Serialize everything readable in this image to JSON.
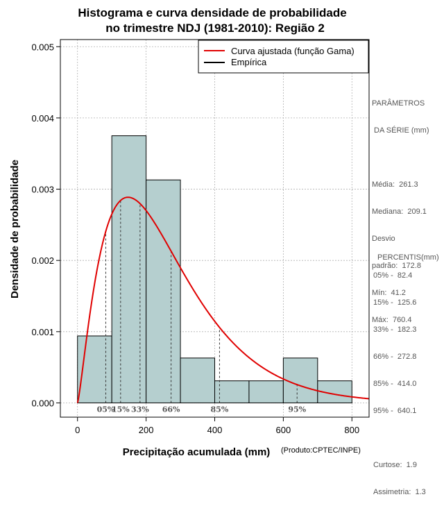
{
  "colors": {
    "bar_fill": "#b5cfcf",
    "bar_stroke": "#000000",
    "curve": "#e00000",
    "empirical": "#000000",
    "grid": "#b0b0b0",
    "side_text": "#555555"
  },
  "chart_data": {
    "type": "bar",
    "title_line1": "Histograma e curva densidade de probabilidade",
    "title_line2": "no trimestre NDJ (1981-2010): Região 2",
    "xlabel": "Precipitação acumulada (mm)",
    "ylabel": "Densidade de probabilidade",
    "credit": "(Produto:CPTEC/INPE)",
    "xlim": [
      -50,
      850
    ],
    "ylim": [
      -0.0002,
      0.0051
    ],
    "x_ticks": [
      0,
      200,
      400,
      600,
      800
    ],
    "x_tick_labels": [
      "0",
      "200",
      "400",
      "600",
      "800"
    ],
    "y_ticks": [
      0.0,
      0.001,
      0.002,
      0.003,
      0.004,
      0.005
    ],
    "y_tick_labels": [
      "0.000",
      "0.001",
      "0.002",
      "0.003",
      "0.004",
      "0.005"
    ],
    "grid": true,
    "histogram": {
      "bins": [
        [
          0,
          100
        ],
        [
          100,
          200
        ],
        [
          200,
          300
        ],
        [
          300,
          400
        ],
        [
          400,
          500
        ],
        [
          500,
          600
        ],
        [
          600,
          700
        ],
        [
          700,
          800
        ]
      ],
      "density": [
        0.00094,
        0.00375,
        0.00313,
        0.00063,
        0.00031,
        0.00031,
        0.00063,
        0.00031
      ]
    },
    "gamma_fit": {
      "shape": 2.29,
      "scale": 114.2
    },
    "legend": {
      "position": "top-right",
      "entries": [
        {
          "label": "Curva ajustada (função Gama)",
          "color": "#e00000"
        },
        {
          "label": "Empírica",
          "color": "#000000"
        }
      ]
    },
    "percentile_lines": [
      {
        "label": "05%",
        "value": 82.4
      },
      {
        "label": "15%",
        "value": 125.6
      },
      {
        "label": "33%",
        "value": 182.3
      },
      {
        "label": "66%",
        "value": 272.8
      },
      {
        "label": "85%",
        "value": 414.0
      },
      {
        "label": "95%",
        "value": 640.1
      }
    ]
  },
  "params_panel": {
    "heading_line1": "PARÂMETROS",
    "heading_line2": " DA SÉRIE (mm)",
    "media": "Média:  261.3",
    "mediana": "Mediana:  209.1",
    "desvio1": "Desvio",
    "desvio2": "padrão:  172.8",
    "min": "Mín:  41.2",
    "max": "Máx:  760.4"
  },
  "percentis_panel": {
    "heading": "PERCENTIS(mm)",
    "p05": "05% -  82.4",
    "p15": "15% -  125.6",
    "p33": "33% -  182.3",
    "p66": "66% -  272.8",
    "p85": "85% -  414.0",
    "p95": "95% -  640.1",
    "curtose": "Curtose:  1.9",
    "assimetria": "Assimetria:  1.3"
  }
}
